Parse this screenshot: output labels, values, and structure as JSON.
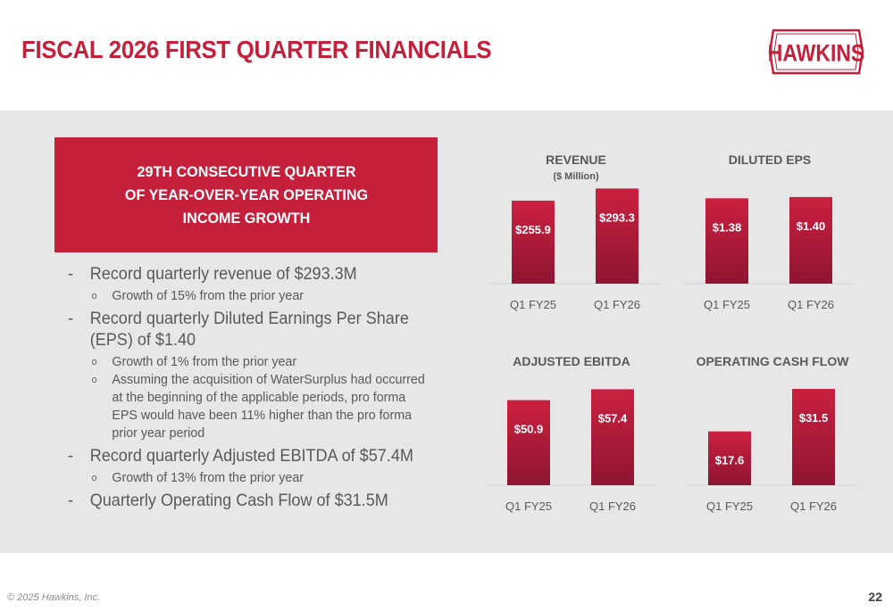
{
  "title": "FISCAL 2026 FIRST QUARTER FINANCIALS",
  "logo": {
    "text": "HAWKINS",
    "color": "#c41f3b"
  },
  "callout": {
    "lines": [
      "29TH CONSECUTIVE QUARTER",
      "OF YEAR-OVER-YEAR OPERATING",
      "INCOME GROWTH"
    ]
  },
  "bullets": [
    {
      "text": "Record quarterly revenue of $293.3M",
      "subs": [
        "Growth of 15% from the prior year"
      ]
    },
    {
      "text": "Record quarterly Diluted Earnings Per Share (EPS) of $1.40",
      "subs": [
        "Growth of 1% from the prior year",
        "Assuming the acquisition of WaterSurplus had occurred at the beginning of the applicable periods, pro forma EPS would have been 11% higher than the pro forma prior year period"
      ]
    },
    {
      "text": "Record quarterly Adjusted EBITDA of $57.4M",
      "subs": [
        "Growth of 13% from the prior year"
      ]
    },
    {
      "text": "Quarterly Operating Cash Flow of $31.5M",
      "subs": []
    }
  ],
  "chart_data": [
    {
      "type": "bar",
      "title": "REVENUE",
      "subtitle": "($ Million)",
      "categories": [
        "Q1 FY25",
        "Q1 FY26"
      ],
      "values": [
        255.9,
        293.3
      ],
      "labels": [
        "$255.9",
        "$293.3"
      ],
      "ylim": [
        0,
        330
      ]
    },
    {
      "type": "bar",
      "title": "DILUTED EPS",
      "subtitle": "",
      "categories": [
        "Q1 FY25",
        "Q1 FY26"
      ],
      "values": [
        1.38,
        1.4
      ],
      "labels": [
        "$1.38",
        "$1.40"
      ],
      "ylim": [
        0,
        1.73
      ]
    },
    {
      "type": "bar",
      "title": "ADJUSTED EBITDA",
      "subtitle": "",
      "categories": [
        "Q1 FY25",
        "Q1 FY26"
      ],
      "values": [
        50.9,
        57.4
      ],
      "labels": [
        "$50.9",
        "$57.4"
      ],
      "ylim": [
        0,
        64
      ]
    },
    {
      "type": "bar",
      "title": "OPERATING CASH FLOW",
      "subtitle": "",
      "categories": [
        "Q1 FY25",
        "Q1 FY26"
      ],
      "values": [
        17.6,
        31.5
      ],
      "labels": [
        "$17.6",
        "$31.5"
      ],
      "ylim": [
        0,
        35
      ]
    }
  ],
  "colors": {
    "accent": "#c41f3b",
    "bar_top": "#cc2041",
    "bar_bottom": "#8e1530",
    "band": "#e7e7e7"
  },
  "footer": {
    "copyright": "© 2025 Hawkins, Inc.",
    "page": "22"
  }
}
